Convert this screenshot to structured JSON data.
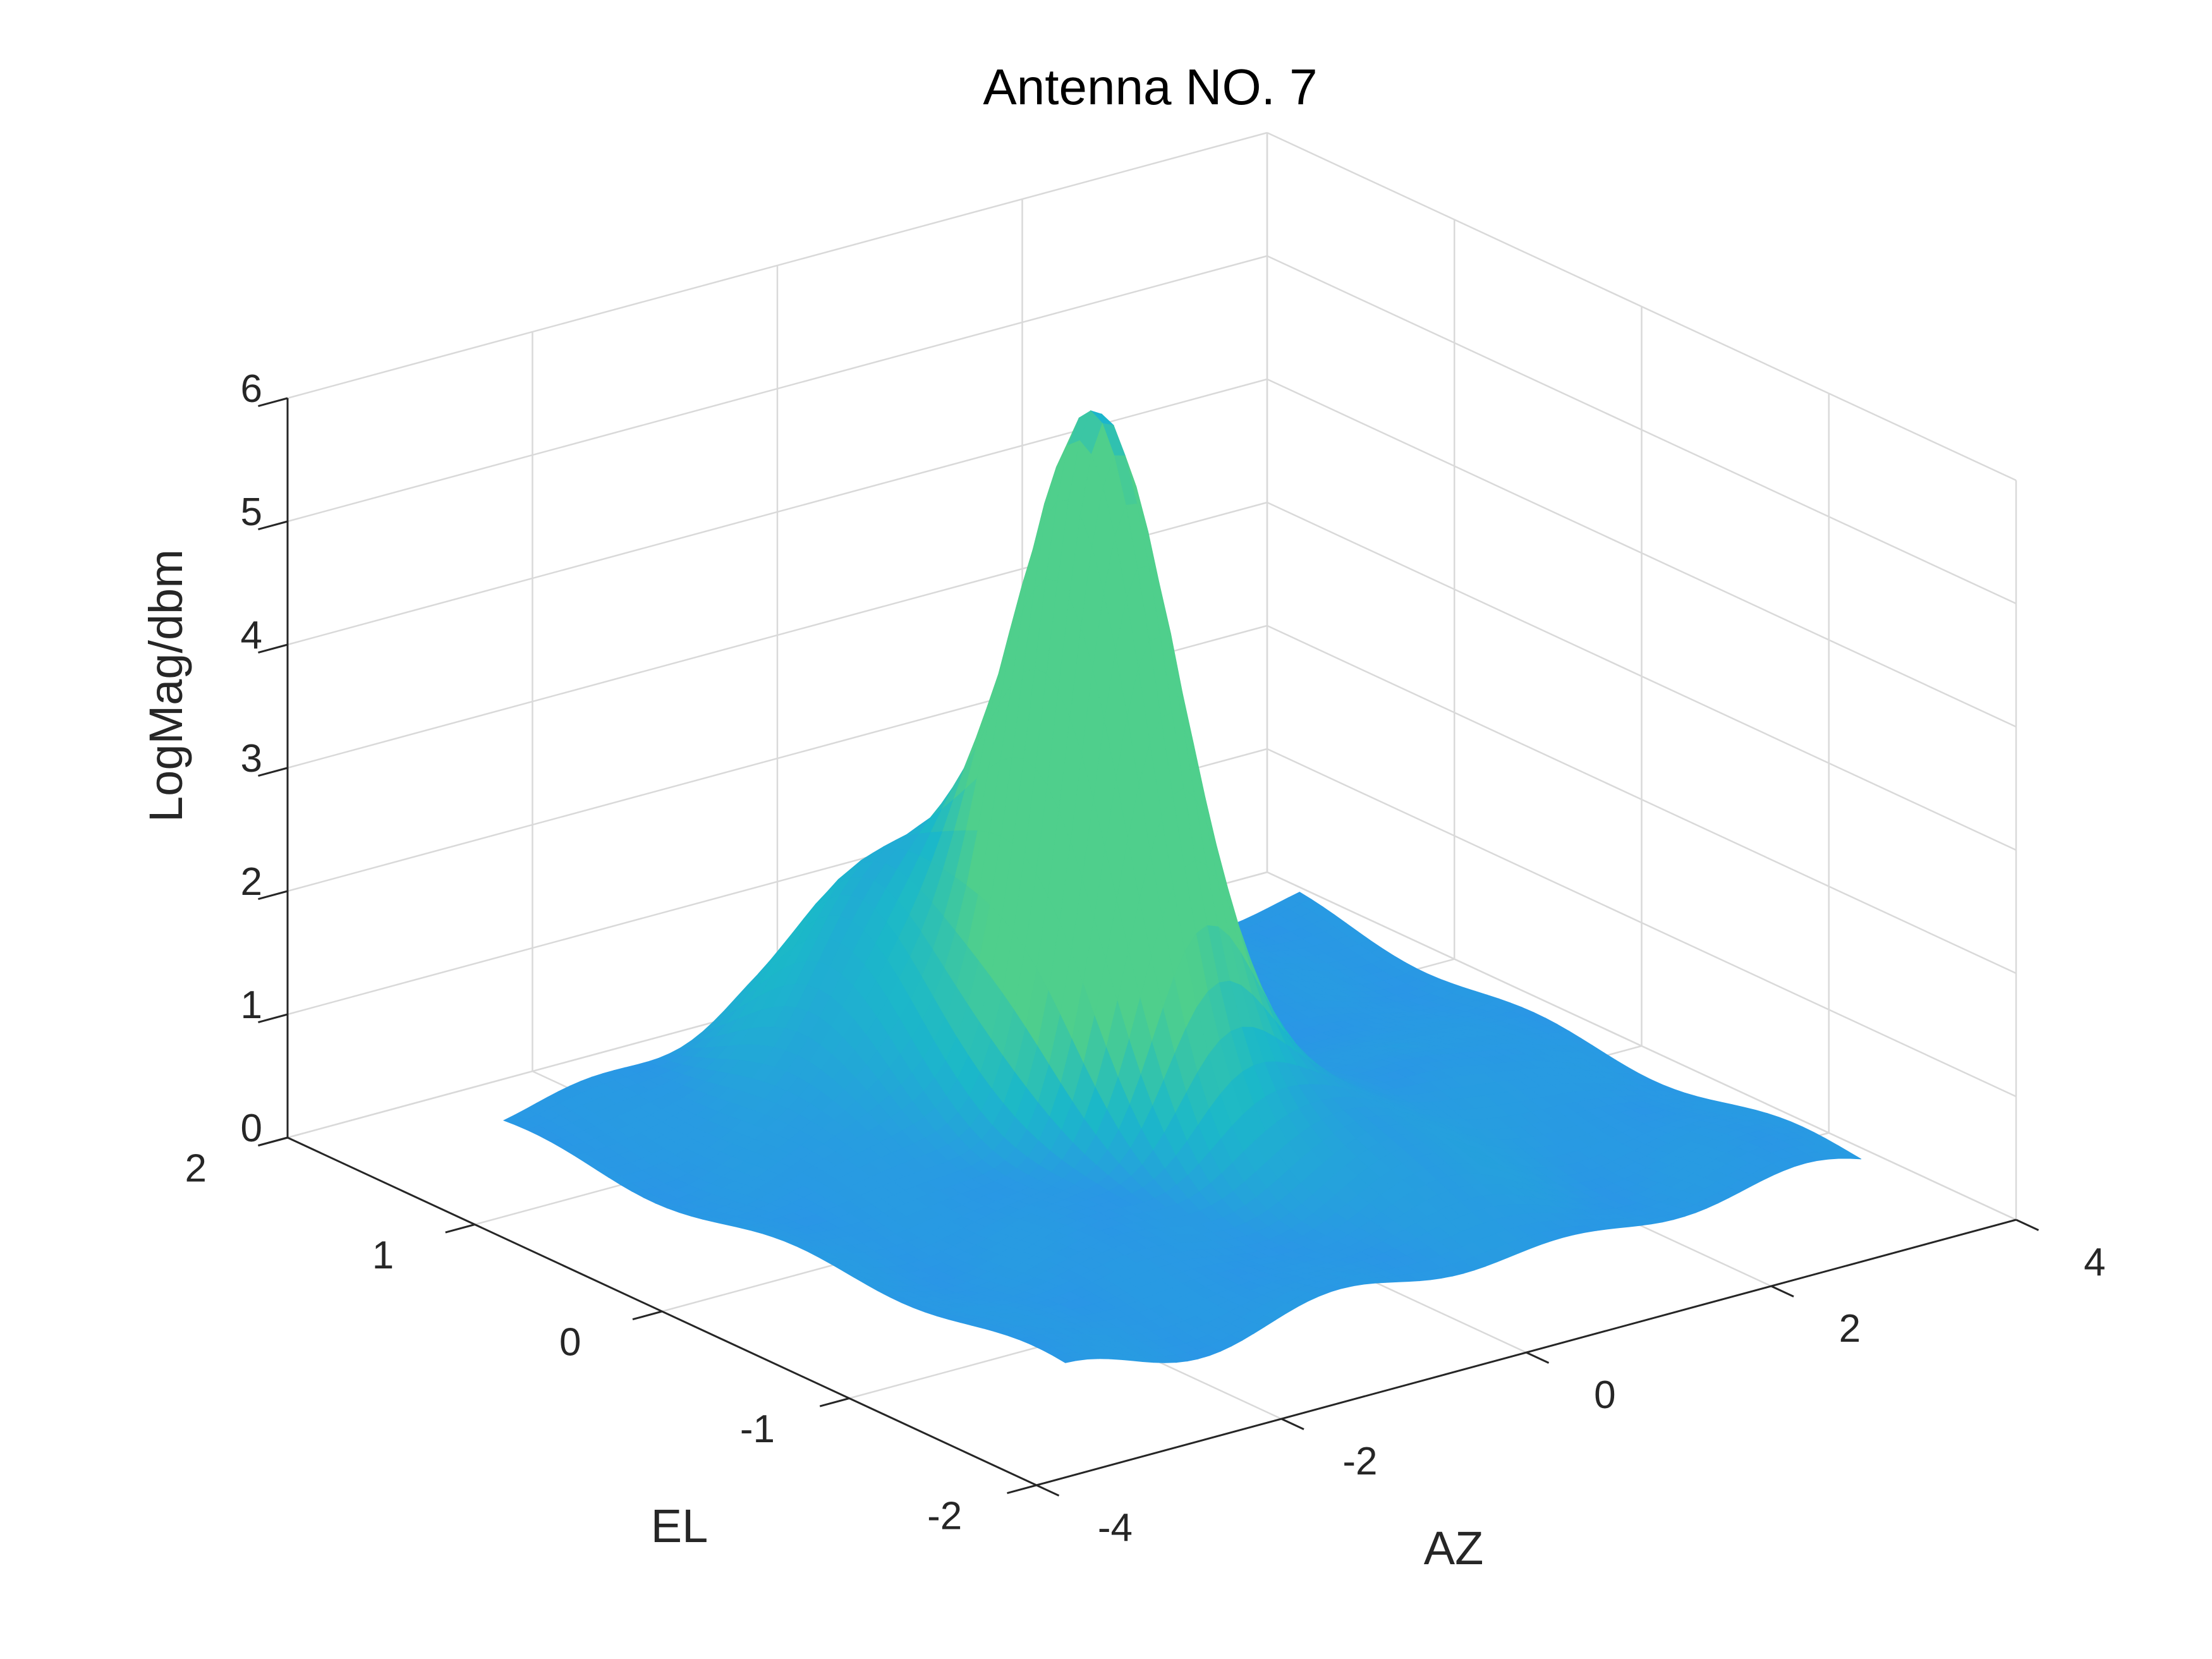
{
  "chart_data": {
    "type": "surface",
    "title": "Antenna NO. 7",
    "xlabel": "AZ",
    "ylabel": "EL",
    "zlabel": "LogMag/dbm",
    "xlim": [
      -4,
      4
    ],
    "ylim": [
      -2,
      2
    ],
    "zlim": [
      0,
      6
    ],
    "xticks": [
      -4,
      -2,
      0,
      2,
      4
    ],
    "yticks": [
      -2,
      -1,
      0,
      1,
      2
    ],
    "zticks": [
      0,
      1,
      2,
      3,
      4,
      5,
      6
    ],
    "xtick_labels": [
      "-4",
      "-2",
      "0",
      "2",
      "4"
    ],
    "ytick_labels": [
      "-2",
      "-1",
      "0",
      "1",
      "2"
    ],
    "ztick_labels": [
      "0",
      "1",
      "2",
      "3",
      "4",
      "5",
      "6"
    ],
    "grid": true,
    "surface_x_range": [
      -3.0,
      3.5
    ],
    "surface_y_range": [
      -1.5,
      1.5
    ],
    "base_level": 0.25,
    "peaks": [
      {
        "x": 0.0,
        "y": 0.3,
        "z": 5.4,
        "sx": 0.4,
        "sy": 0.35
      },
      {
        "x": -0.7,
        "y": 1.0,
        "z": 1.7,
        "sx": 0.55,
        "sy": 0.4
      },
      {
        "x": 0.6,
        "y": -0.3,
        "z": 0.6,
        "sx": 0.6,
        "sy": 0.5
      },
      {
        "x": 1.8,
        "y": -0.1,
        "z": 0.3,
        "sx": 0.4,
        "sy": 0.3
      }
    ],
    "colors": {
      "low": "#2a96e6",
      "mid": "#1bb8c9",
      "high": "#4fcf8c"
    }
  }
}
